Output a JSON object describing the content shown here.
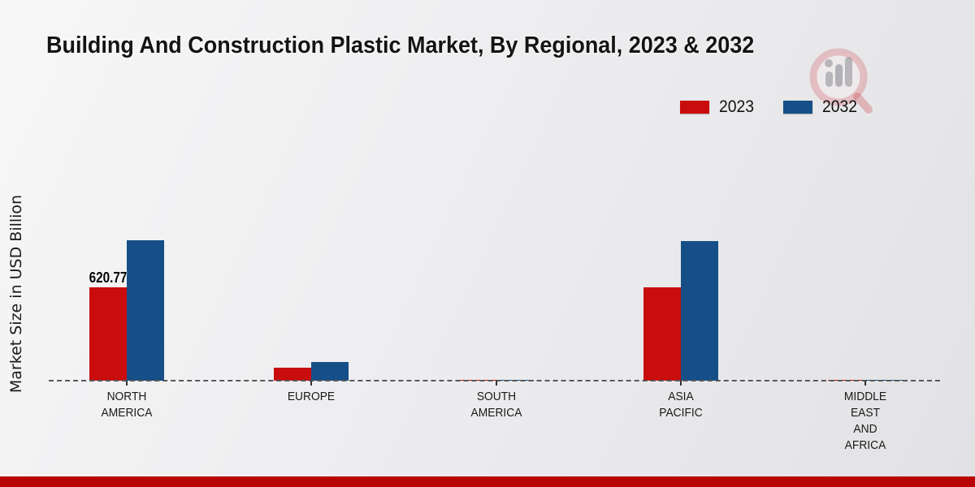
{
  "chart_data": {
    "type": "bar",
    "title": "Building And Construction Plastic Market, By Regional, 2023 & 2032",
    "ylabel": "Market Size in USD Billion",
    "xlabel": "",
    "ylim": [
      0,
      1000
    ],
    "grid": false,
    "legend_position": "top-right",
    "baseline_style": "dashed",
    "categories": [
      "NORTH AMERICA",
      "EUROPE",
      "SOUTH AMERICA",
      "ASIA PACIFIC",
      "MIDDLE EAST AND AFRICA"
    ],
    "series": [
      {
        "name": "2023",
        "color": "#c90c0c",
        "values": [
          620.77,
          88,
          3,
          618,
          2
        ]
      },
      {
        "name": "2032",
        "color": "#164f87",
        "values": [
          930,
          124,
          8,
          925,
          5
        ]
      }
    ],
    "point_labels": [
      {
        "series": "2023",
        "category_index": 0,
        "text": "620.77"
      }
    ]
  },
  "decor": {
    "footer_color": "#b90404",
    "watermark_icon": "magnifier-bar-chart-logo"
  }
}
